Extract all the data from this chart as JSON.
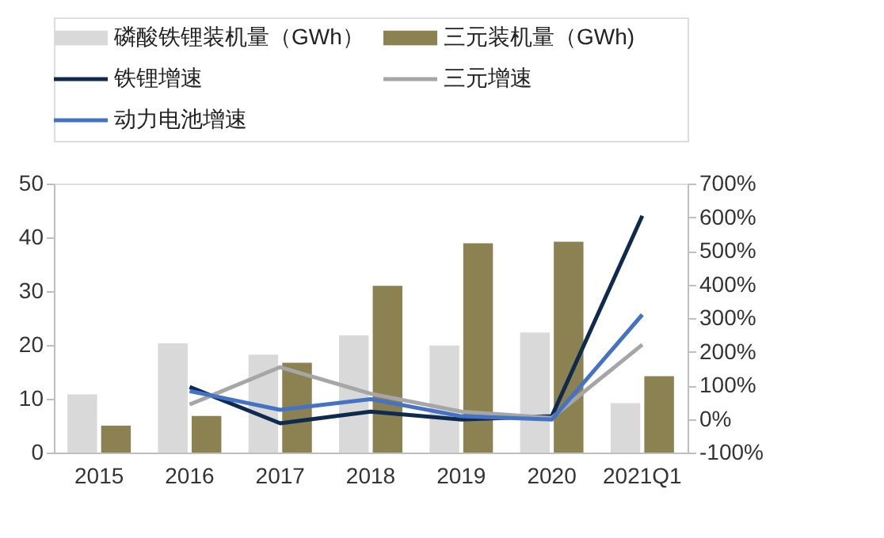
{
  "chart_data": {
    "type": "bar",
    "categories": [
      "2015",
      "2016",
      "2017",
      "2018",
      "2019",
      "2020",
      "2021Q1"
    ],
    "series": [
      {
        "name": "磷酸铁锂装机量（GWh）",
        "color": "#d9d9d9",
        "values": [
          10.8,
          20.3,
          18.2,
          21.8,
          19.9,
          22.3,
          9.2
        ]
      },
      {
        "name": "三元装机量（GWh)",
        "color": "#8c8150",
        "values": [
          5.0,
          6.8,
          16.7,
          31.0,
          38.9,
          39.2,
          14.2
        ]
      },
      {
        "name": "铁锂增速",
        "color": "#0e2a4f",
        "type": "line",
        "axis": "y2",
        "values": [
          null,
          95,
          -13,
          22,
          -2,
          8,
          604
        ]
      },
      {
        "name": "三元增速",
        "color": "#a6a6a6",
        "type": "line",
        "axis": "y2",
        "values": [
          null,
          43,
          154,
          75,
          22,
          3,
          221
        ]
      },
      {
        "name": "动力电池增速",
        "color": "#4472c4",
        "type": "line",
        "axis": "y2",
        "values": [
          null,
          83,
          27,
          59,
          8,
          -2,
          310
        ]
      }
    ],
    "ylim": [
      0,
      50
    ],
    "yticks": [
      0,
      10,
      20,
      30,
      40,
      50
    ],
    "y2lim": [
      -100,
      700
    ],
    "y2ticks": [
      {
        "value": -100,
        "label": "-100%"
      },
      {
        "value": 0,
        "label": "0%"
      },
      {
        "value": 100,
        "label": "100%"
      },
      {
        "value": 200,
        "label": "200%"
      },
      {
        "value": 300,
        "label": "300%"
      },
      {
        "value": 400,
        "label": "400%"
      },
      {
        "value": 500,
        "label": "500%"
      },
      {
        "value": 600,
        "label": "600%"
      },
      {
        "value": 700,
        "label": "700%"
      }
    ],
    "grid": false,
    "legend": "top",
    "line_style": "solid",
    "marker": "none"
  }
}
